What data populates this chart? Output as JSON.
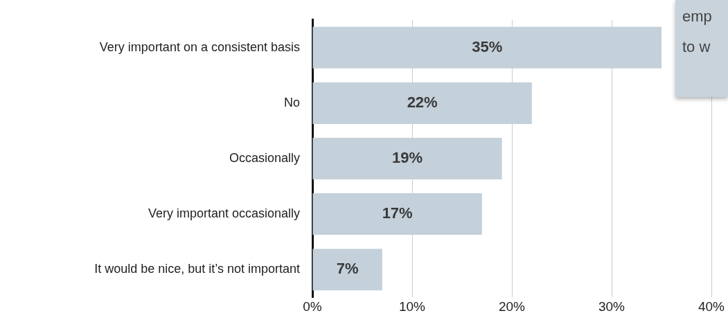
{
  "chart_data": {
    "type": "bar",
    "orientation": "horizontal",
    "categories": [
      "Very important on a consistent basis",
      "No",
      "Occasionally",
      "Very important occasionally",
      "It would be nice, but it’s not important"
    ],
    "values": [
      35,
      22,
      19,
      17,
      7
    ],
    "value_labels": [
      "35%",
      "22%",
      "19%",
      "17%",
      "7%"
    ],
    "color": "#c4d0da",
    "xlim": [
      0,
      40
    ],
    "xticks": [
      {
        "value": 0,
        "label": "0%"
      },
      {
        "value": 10,
        "label": "10%"
      },
      {
        "value": 20,
        "label": "20%"
      },
      {
        "value": 30,
        "label": "30%"
      },
      {
        "value": 40,
        "label": "40%"
      }
    ],
    "grid": "x",
    "legend": false,
    "annotations": [
      "emp",
      "to w"
    ]
  }
}
